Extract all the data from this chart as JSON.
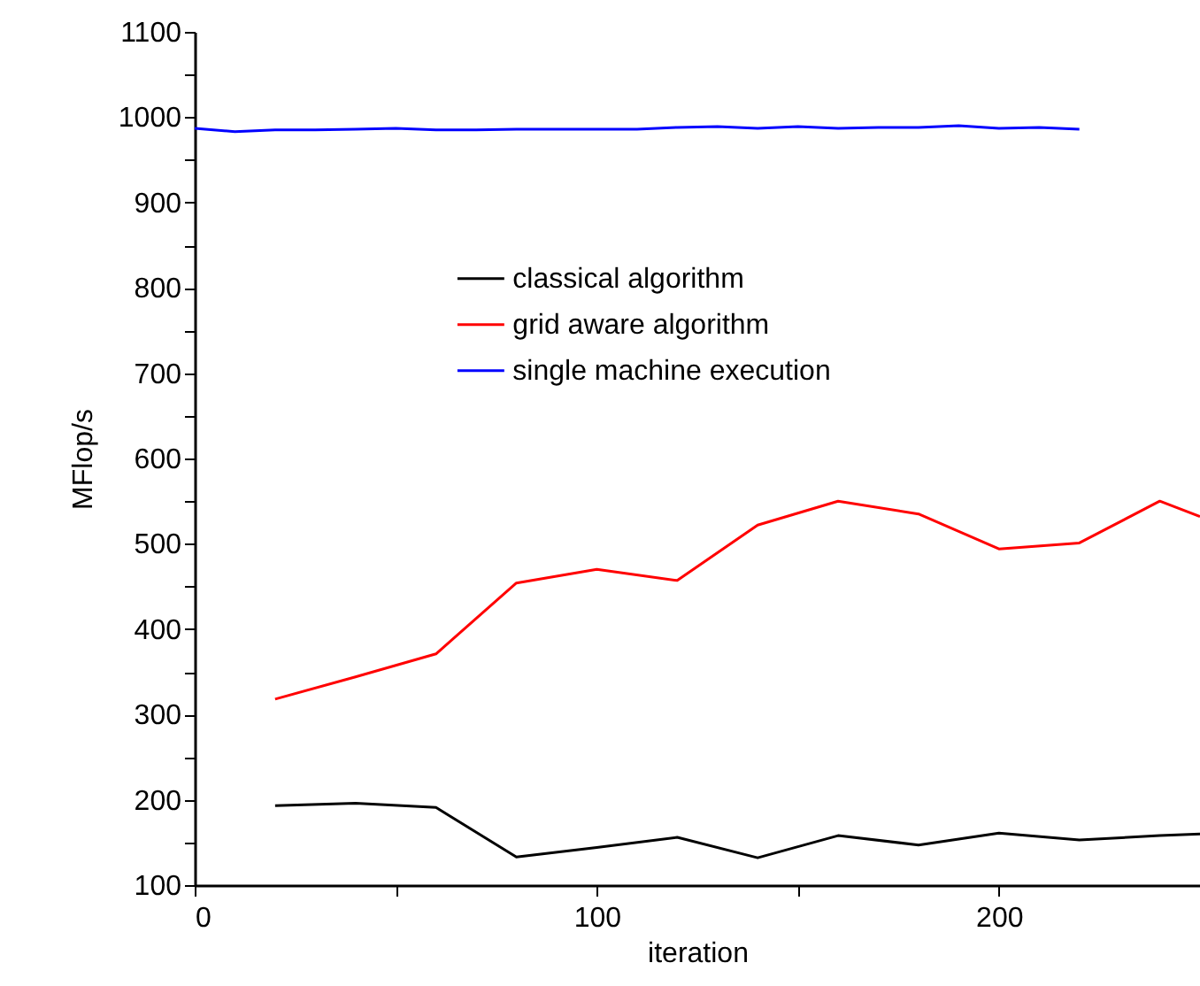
{
  "chart_data": {
    "type": "line",
    "xlabel": "iteration",
    "ylabel": "MFlop/s",
    "xlim": [
      0,
      250
    ],
    "xticks": [
      0,
      {
        "value": 50,
        "label": null
      },
      100,
      {
        "value": 150,
        "label": null
      },
      200,
      {
        "value": 250,
        "label": null
      }
    ],
    "ylim": [
      100,
      1100
    ],
    "yticks": [
      100,
      {
        "value": 150,
        "label": null
      },
      200,
      {
        "value": 250,
        "label": null
      },
      300,
      {
        "value": 350,
        "label": null
      },
      400,
      {
        "value": 450,
        "label": null
      },
      500,
      {
        "value": 550,
        "label": null
      },
      600,
      {
        "value": 650,
        "label": null
      },
      700,
      {
        "value": 750,
        "label": null
      },
      800,
      {
        "value": 850,
        "label": null
      },
      900,
      {
        "value": 950,
        "label": null
      },
      1000,
      {
        "value": 1050,
        "label": null
      },
      1100
    ],
    "grid": false,
    "legend": "top",
    "marker": "none",
    "line_style": "solid",
    "series": [
      {
        "name": "classical algorithm",
        "color": "#000000",
        "x": [
          20,
          40,
          60,
          80,
          100,
          120,
          140,
          160,
          180,
          200,
          220,
          240,
          250
        ],
        "values": [
          193,
          196,
          191,
          133,
          144,
          156,
          132,
          158,
          147,
          161,
          153,
          158,
          160
        ]
      },
      {
        "name": "grid aware algorithm",
        "color": "#ff0000",
        "x": [
          20,
          40,
          60,
          80,
          100,
          120,
          140,
          160,
          180,
          200,
          220,
          240,
          250
        ],
        "values": [
          318,
          344,
          371,
          454,
          470,
          457,
          522,
          550,
          535,
          494,
          501,
          550,
          532
        ]
      },
      {
        "name": "single machine execution",
        "color": "#0000ff",
        "x": [
          0,
          10,
          20,
          30,
          40,
          50,
          60,
          70,
          80,
          90,
          100,
          110,
          120,
          130,
          140,
          150,
          160,
          170,
          180,
          190,
          200,
          210,
          220
        ],
        "values": [
          987,
          983,
          985,
          985,
          986,
          987,
          985,
          985,
          986,
          986,
          986,
          986,
          988,
          989,
          987,
          989,
          987,
          988,
          988,
          990,
          987,
          988,
          986
        ]
      }
    ]
  }
}
